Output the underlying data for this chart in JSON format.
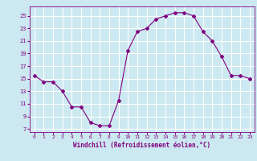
{
  "x": [
    0,
    1,
    2,
    3,
    4,
    5,
    6,
    7,
    8,
    9,
    10,
    11,
    12,
    13,
    14,
    15,
    16,
    17,
    18,
    19,
    20,
    21,
    22,
    23
  ],
  "y": [
    15.5,
    14.5,
    14.5,
    13.0,
    10.5,
    10.5,
    8.0,
    7.5,
    7.5,
    11.5,
    19.5,
    22.5,
    23.0,
    24.5,
    25.0,
    25.5,
    25.5,
    25.0,
    22.5,
    21.0,
    18.5,
    15.5,
    15.5,
    15.0
  ],
  "line_color": "#800080",
  "marker": "D",
  "marker_size": 2,
  "bg_color": "#cce8f0",
  "grid_color": "#ffffff",
  "xlabel": "Windchill (Refroidissement éolien,°C)",
  "xlabel_color": "#800080",
  "tick_color": "#800080",
  "yticks": [
    7,
    9,
    11,
    13,
    15,
    17,
    19,
    21,
    23,
    25
  ],
  "xticks": [
    0,
    1,
    2,
    3,
    4,
    5,
    6,
    7,
    8,
    9,
    10,
    11,
    12,
    13,
    14,
    15,
    16,
    17,
    18,
    19,
    20,
    21,
    22,
    23
  ],
  "ylim": [
    6.5,
    26.5
  ],
  "xlim": [
    -0.5,
    23.5
  ]
}
